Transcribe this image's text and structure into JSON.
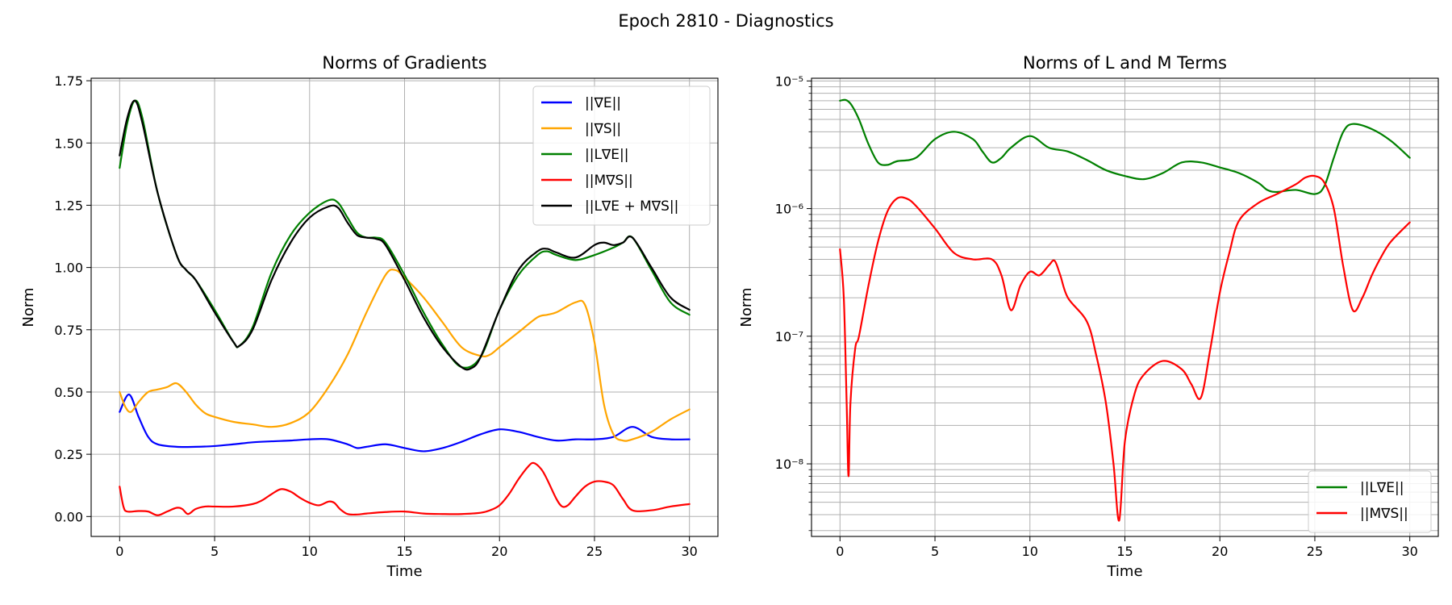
{
  "figure": {
    "suptitle": "Epoch 2810 - Diagnostics"
  },
  "chart_data": [
    {
      "type": "line",
      "title": "Norms of Gradients",
      "xlabel": "Time",
      "ylabel": "Norm",
      "xlim": [
        -1.5,
        31.5
      ],
      "ylim": [
        -0.08,
        1.76
      ],
      "xticks": [
        0,
        5,
        10,
        15,
        20,
        25,
        30
      ],
      "yticks": [
        0.0,
        0.25,
        0.5,
        0.75,
        1.0,
        1.25,
        1.5,
        1.75
      ],
      "ytick_labels": [
        "0.00",
        "0.25",
        "0.50",
        "0.75",
        "1.00",
        "1.25",
        "1.50",
        "1.75"
      ],
      "yscale": "linear",
      "grid": true,
      "legend": "upper right",
      "series": [
        {
          "name": "||∇E||",
          "color": "#0000ff",
          "x": [
            0,
            0.5,
            1,
            1.5,
            2,
            3,
            4,
            5,
            6,
            7,
            8,
            9,
            10,
            11,
            12,
            12.5,
            13,
            14,
            15,
            16,
            17,
            18,
            19,
            20,
            21,
            22,
            23,
            24,
            25,
            26,
            27,
            28,
            29,
            30
          ],
          "y": [
            0.42,
            0.49,
            0.4,
            0.32,
            0.29,
            0.28,
            0.28,
            0.283,
            0.29,
            0.298,
            0.302,
            0.305,
            0.31,
            0.31,
            0.29,
            0.275,
            0.28,
            0.29,
            0.275,
            0.262,
            0.275,
            0.3,
            0.33,
            0.35,
            0.34,
            0.32,
            0.305,
            0.31,
            0.31,
            0.32,
            0.36,
            0.32,
            0.31,
            0.31
          ]
        },
        {
          "name": "||∇S||",
          "color": "#ffa500",
          "x": [
            0,
            0.3,
            0.6,
            1,
            1.5,
            2,
            2.5,
            3,
            3.5,
            4,
            4.5,
            5,
            6,
            7,
            8,
            9,
            10,
            11,
            12,
            13,
            14,
            14.5,
            15,
            16,
            17,
            18,
            19,
            19.5,
            20,
            21,
            22,
            22.5,
            23,
            24,
            24.5,
            25,
            25.5,
            26,
            26.5,
            27,
            28,
            29,
            30
          ],
          "y": [
            0.5,
            0.44,
            0.42,
            0.46,
            0.5,
            0.51,
            0.52,
            0.535,
            0.5,
            0.45,
            0.415,
            0.4,
            0.38,
            0.37,
            0.36,
            0.375,
            0.42,
            0.52,
            0.65,
            0.82,
            0.97,
            0.99,
            0.96,
            0.88,
            0.78,
            0.68,
            0.645,
            0.65,
            0.68,
            0.74,
            0.8,
            0.81,
            0.82,
            0.86,
            0.85,
            0.7,
            0.45,
            0.33,
            0.305,
            0.31,
            0.34,
            0.39,
            0.43
          ]
        },
        {
          "name": "||L∇E||",
          "color": "#008000",
          "x": [
            0,
            0.4,
            0.8,
            1.2,
            2,
            3,
            3.5,
            4,
            5,
            6,
            6.3,
            7,
            8,
            9,
            10,
            11,
            11.5,
            12,
            12.5,
            13,
            13.5,
            14,
            15,
            16,
            17,
            18,
            19,
            20,
            21,
            22,
            22.5,
            23,
            24,
            25,
            26,
            26.5,
            27,
            28,
            29,
            30
          ],
          "y": [
            1.4,
            1.58,
            1.67,
            1.6,
            1.3,
            1.05,
            0.99,
            0.95,
            0.83,
            0.7,
            0.685,
            0.76,
            0.98,
            1.13,
            1.22,
            1.27,
            1.26,
            1.2,
            1.14,
            1.12,
            1.12,
            1.1,
            0.97,
            0.82,
            0.69,
            0.6,
            0.64,
            0.83,
            0.97,
            1.05,
            1.065,
            1.05,
            1.03,
            1.05,
            1.08,
            1.1,
            1.12,
            0.99,
            0.86,
            0.81
          ]
        },
        {
          "name": "||M∇S||",
          "color": "#ff0000",
          "x": [
            0,
            0.2,
            0.4,
            1,
            1.5,
            2,
            2.5,
            3,
            3.3,
            3.6,
            4,
            4.5,
            5,
            6,
            7,
            7.5,
            8,
            8.5,
            9,
            9.5,
            10,
            10.5,
            11,
            11.3,
            11.6,
            12,
            12.5,
            13,
            14,
            15,
            16,
            17,
            18,
            19,
            19.5,
            20,
            20.5,
            21,
            21.5,
            21.8,
            22.2,
            22.5,
            23,
            23.3,
            23.6,
            24,
            24.5,
            25,
            25.5,
            26,
            26.5,
            27,
            28,
            29,
            30
          ],
          "y": [
            0.12,
            0.04,
            0.02,
            0.022,
            0.02,
            0.005,
            0.02,
            0.035,
            0.03,
            0.01,
            0.03,
            0.04,
            0.04,
            0.04,
            0.05,
            0.065,
            0.09,
            0.11,
            0.1,
            0.075,
            0.055,
            0.045,
            0.06,
            0.055,
            0.03,
            0.01,
            0.008,
            0.012,
            0.018,
            0.02,
            0.012,
            0.01,
            0.01,
            0.015,
            0.025,
            0.045,
            0.09,
            0.15,
            0.2,
            0.215,
            0.19,
            0.15,
            0.07,
            0.04,
            0.045,
            0.08,
            0.12,
            0.14,
            0.14,
            0.125,
            0.07,
            0.025,
            0.025,
            0.04,
            0.05
          ]
        },
        {
          "name": "||L∇E + M∇S||",
          "color": "#000000",
          "x": [
            0,
            0.4,
            0.8,
            1.2,
            2,
            3,
            3.5,
            4,
            5,
            6,
            6.3,
            7,
            8,
            9,
            10,
            11,
            11.5,
            12,
            12.5,
            13,
            13.5,
            14,
            15,
            16,
            17,
            18,
            18.5,
            19,
            20,
            21,
            22,
            22.5,
            23,
            24,
            25,
            25.5,
            26,
            26.5,
            27,
            28,
            29,
            30
          ],
          "y": [
            1.45,
            1.6,
            1.67,
            1.58,
            1.3,
            1.05,
            0.99,
            0.95,
            0.82,
            0.7,
            0.685,
            0.75,
            0.95,
            1.1,
            1.2,
            1.245,
            1.24,
            1.18,
            1.13,
            1.12,
            1.115,
            1.09,
            0.95,
            0.8,
            0.68,
            0.6,
            0.595,
            0.64,
            0.83,
            0.99,
            1.065,
            1.075,
            1.06,
            1.04,
            1.09,
            1.1,
            1.09,
            1.1,
            1.12,
            1.0,
            0.88,
            0.83
          ]
        }
      ]
    },
    {
      "type": "line",
      "title": "Norms of L and M Terms",
      "xlabel": "Time",
      "ylabel": "Norm",
      "xlim": [
        -1.5,
        31.5
      ],
      "ylim": [
        2.7e-09,
        1.05e-05
      ],
      "yscale": "log",
      "xticks": [
        0,
        5,
        10,
        15,
        20,
        25,
        30
      ],
      "yticks": [
        1e-08,
        1e-07,
        1e-06,
        1e-05
      ],
      "ytick_labels": [
        "10⁻⁸",
        "10⁻⁷",
        "10⁻⁶",
        "10⁻⁵"
      ],
      "grid": true,
      "legend": "lower right",
      "series": [
        {
          "name": "||L∇E||",
          "color": "#008000",
          "x": [
            0,
            0.3,
            0.6,
            1,
            1.5,
            2,
            2.5,
            3,
            4,
            5,
            6,
            7,
            7.5,
            8,
            8.5,
            9,
            10,
            11,
            12,
            13,
            14,
            15,
            16,
            17,
            18,
            19,
            20,
            21,
            22,
            22.5,
            23,
            24,
            25,
            25.5,
            26,
            26.5,
            27,
            28,
            29,
            30
          ],
          "y": [
            7e-06,
            7.1e-06,
            6.5e-06,
            5e-06,
            3.2e-06,
            2.3e-06,
            2.2e-06,
            2.35e-06,
            2.5e-06,
            3.5e-06,
            4e-06,
            3.5e-06,
            2.8e-06,
            2.3e-06,
            2.5e-06,
            3e-06,
            3.7e-06,
            3e-06,
            2.8e-06,
            2.4e-06,
            2e-06,
            1.8e-06,
            1.7e-06,
            1.9e-06,
            2.3e-06,
            2.3e-06,
            2.1e-06,
            1.9e-06,
            1.6e-06,
            1.4e-06,
            1.35e-06,
            1.4e-06,
            1.3e-06,
            1.5e-06,
            2.5e-06,
            4e-06,
            4.6e-06,
            4.2e-06,
            3.4e-06,
            2.5e-06
          ]
        },
        {
          "name": "||M∇S||",
          "color": "#ff0000",
          "x": [
            0,
            0.2,
            0.35,
            0.45,
            0.55,
            0.8,
            1,
            1.5,
            2,
            2.5,
            3,
            3.5,
            4,
            5,
            6,
            7,
            8,
            8.5,
            9,
            9.5,
            10,
            10.5,
            11,
            11.3,
            11.6,
            12,
            13,
            13.5,
            14,
            14.4,
            14.7,
            15,
            15.5,
            16,
            17,
            18,
            18.5,
            19,
            19.5,
            20,
            20.5,
            21,
            22,
            23,
            24,
            24.5,
            25,
            25.5,
            26,
            26.5,
            27,
            27.5,
            28,
            28.5,
            29,
            30
          ],
          "y": [
            4.8e-07,
            2e-07,
            3e-08,
            8e-09,
            3e-08,
            8e-08,
            1e-07,
            2.5e-07,
            5.5e-07,
            9.5e-07,
            1.2e-06,
            1.2e-06,
            1.05e-06,
            7e-07,
            4.5e-07,
            4e-07,
            4e-07,
            3e-07,
            1.6e-07,
            2.5e-07,
            3.2e-07,
            3e-07,
            3.6e-07,
            3.9e-07,
            3e-07,
            2e-07,
            1.3e-07,
            7e-08,
            3e-08,
            1e-08,
            3.6e-09,
            1.5e-08,
            3.5e-08,
            5e-08,
            6.4e-08,
            5.5e-08,
            4.2e-08,
            3.3e-08,
            8e-08,
            2.2e-07,
            4.5e-07,
            8e-07,
            1.1e-06,
            1.3e-06,
            1.55e-06,
            1.75e-06,
            1.8e-06,
            1.6e-06,
            1e-06,
            3.5e-07,
            1.6e-07,
            2e-07,
            3e-07,
            4.2e-07,
            5.5e-07,
            7.8e-07
          ]
        }
      ]
    }
  ]
}
